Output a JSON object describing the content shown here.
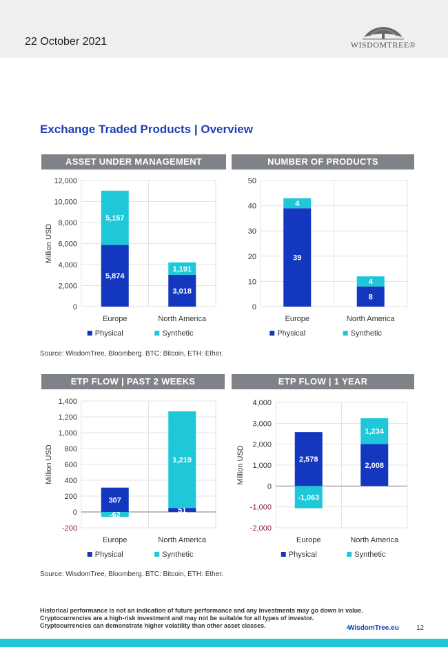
{
  "header": {
    "date": "22 October 2021",
    "logo_text": "WISDOMTREE®"
  },
  "section_title": "Exchange Traded Products | Overview",
  "colors": {
    "physical": "#1437c0",
    "synthetic": "#1fc8d8",
    "band": "#7f8287",
    "title": "#1c3fb1"
  },
  "legend": {
    "physical": "Physical",
    "synthetic": "Synthetic"
  },
  "source_text": "Source: WisdomTree, Bloomberg. BTC: Bitcoin, ETH: Ether.",
  "chart_data": [
    {
      "type": "bar",
      "title": "ASSET UNDER MANAGEMENT",
      "ylabel": "Million USD",
      "categories": [
        "Europe",
        "North America"
      ],
      "stacked": true,
      "ylim": [
        0,
        12000
      ],
      "ticks": [
        0,
        2000,
        4000,
        6000,
        8000,
        10000,
        12000
      ],
      "tick_labels": [
        "0",
        "2,000",
        "4,000",
        "6,000",
        "8,000",
        "10,000",
        "12,000"
      ],
      "series": [
        {
          "name": "Physical",
          "values": [
            5874,
            3018
          ],
          "labels": [
            "5,874",
            "3,018"
          ]
        },
        {
          "name": "Synthetic",
          "values": [
            5157,
            1191
          ],
          "labels": [
            "5,157",
            "1,191"
          ]
        }
      ]
    },
    {
      "type": "bar",
      "title": "NUMBER OF PRODUCTS",
      "ylabel": "",
      "categories": [
        "Europe",
        "North America"
      ],
      "stacked": true,
      "ylim": [
        0,
        50
      ],
      "ticks": [
        0,
        10,
        20,
        30,
        40,
        50
      ],
      "tick_labels": [
        "0",
        "10",
        "20",
        "30",
        "40",
        "50"
      ],
      "series": [
        {
          "name": "Physical",
          "values": [
            39,
            8
          ],
          "labels": [
            "39",
            "8"
          ]
        },
        {
          "name": "Synthetic",
          "values": [
            4,
            4
          ],
          "labels": [
            "4",
            "4"
          ]
        }
      ]
    },
    {
      "type": "bar",
      "title": "ETP FLOW | PAST 2 WEEKS",
      "ylabel": "Million USD",
      "categories": [
        "Europe",
        "North America"
      ],
      "stacked": true,
      "ylim": [
        -200,
        1400
      ],
      "ticks": [
        -200,
        0,
        200,
        400,
        600,
        800,
        1000,
        1200,
        1400
      ],
      "tick_labels": [
        "-200",
        "0",
        "200",
        "400",
        "600",
        "800",
        "1,000",
        "1,200",
        "1,400"
      ],
      "series": [
        {
          "name": "Physical",
          "values": [
            307,
            51
          ],
          "labels": [
            "307",
            "51"
          ]
        },
        {
          "name": "Synthetic",
          "values": [
            -62,
            1219
          ],
          "labels": [
            "-62",
            "1,219"
          ]
        }
      ]
    },
    {
      "type": "bar",
      "title": "ETP FLOW | 1 YEAR",
      "ylabel": "Million USD",
      "categories": [
        "Europe",
        "North America"
      ],
      "stacked": true,
      "ylim": [
        -2000,
        4000
      ],
      "ticks": [
        -2000,
        -1000,
        0,
        1000,
        2000,
        3000,
        4000
      ],
      "tick_labels": [
        "-2,000",
        "-1,000",
        "0",
        "1,000",
        "2,000",
        "3,000",
        "4,000"
      ],
      "series": [
        {
          "name": "Physical",
          "values": [
            2578,
            2008
          ],
          "labels": [
            "2,578",
            "2,008"
          ]
        },
        {
          "name": "Synthetic",
          "values": [
            -1063,
            1234
          ],
          "labels": [
            "-1,063",
            "1,234"
          ]
        }
      ]
    }
  ],
  "disclaimer": {
    "line1": "Historical performance is not an indication of future performance and any investments may go down in value.",
    "line2": "Cryptocurrencies are a high-risk investment and may not be suitable for all types of investor.",
    "line3": "Cryptocurrencies can demonstrate higher volatility than other asset classes."
  },
  "footer": {
    "site": "WisdomTree.eu",
    "page": "12"
  }
}
